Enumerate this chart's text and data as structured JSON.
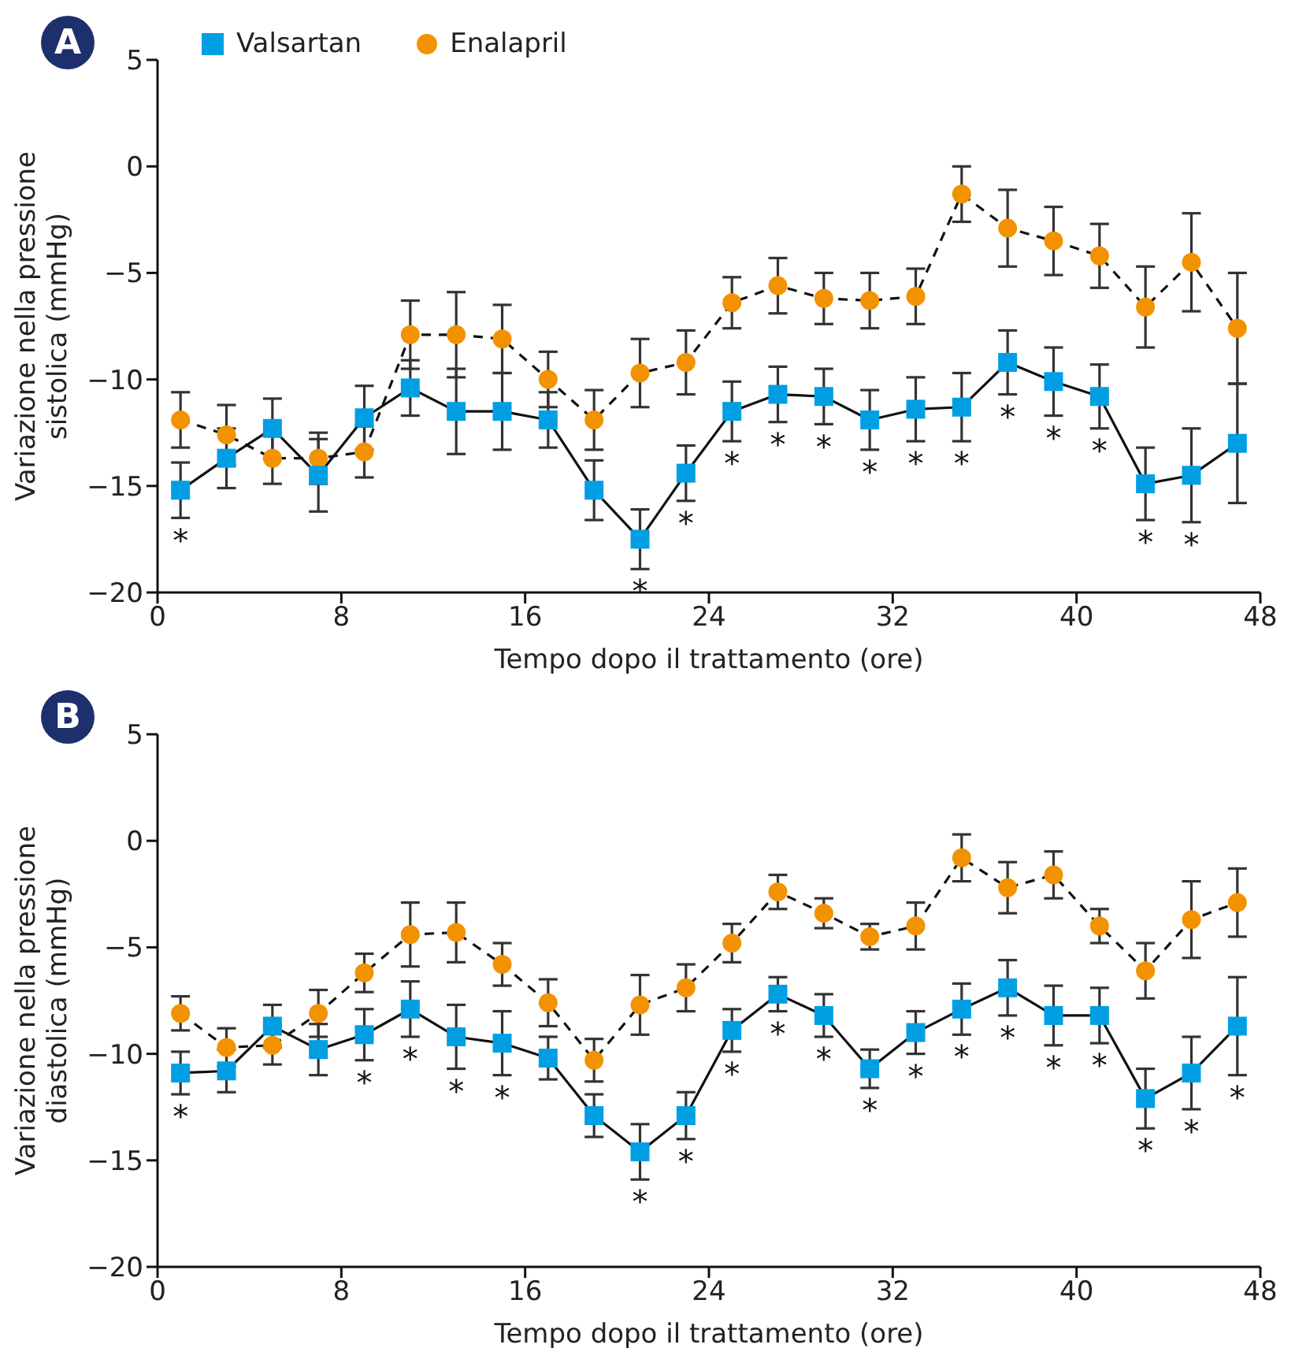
{
  "chart_data": [
    {
      "type": "line",
      "title": "A",
      "xlabel": "Tempo dopo il trattamento (ore)",
      "ylabel": "Variazione nella pressione sistolica (mmHg)",
      "x": [
        1,
        3,
        5,
        7,
        9,
        11,
        13,
        15,
        17,
        19,
        21,
        23,
        25,
        27,
        29,
        31,
        33,
        35,
        37,
        39,
        41,
        43,
        45,
        47
      ],
      "series": [
        {
          "name": "Valsartan",
          "color": "#009fe3",
          "marker": "square",
          "line_style": "solid",
          "values": [
            -15.2,
            -13.7,
            -12.3,
            -14.5,
            -11.8,
            -10.4,
            -11.5,
            -11.5,
            -11.9,
            -15.2,
            -17.5,
            -14.4,
            -11.5,
            -10.7,
            -10.8,
            -11.9,
            -11.4,
            -11.3,
            -9.2,
            -10.1,
            -10.8,
            -14.9,
            -14.5,
            -13.0
          ],
          "errors": [
            1.3,
            1.4,
            1.4,
            1.7,
            1.5,
            1.3,
            2.0,
            1.8,
            1.3,
            1.4,
            1.4,
            1.3,
            1.4,
            1.3,
            1.3,
            1.4,
            1.5,
            1.6,
            1.5,
            1.6,
            1.5,
            1.7,
            2.2,
            2.8
          ]
        },
        {
          "name": "Enalapril",
          "color": "#f39200",
          "marker": "circle",
          "line_style": "dashed",
          "values": [
            -11.9,
            -12.6,
            -13.7,
            -13.7,
            -13.4,
            -7.9,
            -7.9,
            -8.1,
            -10.0,
            -11.9,
            -9.7,
            -9.2,
            -6.4,
            -5.6,
            -6.2,
            -6.3,
            -6.1,
            -1.3,
            -2.9,
            -3.5,
            -4.2,
            -6.6,
            -4.5,
            -7.6
          ],
          "errors": [
            1.3,
            1.4,
            1.2,
            1.2,
            1.2,
            1.6,
            2.0,
            1.6,
            1.3,
            1.4,
            1.6,
            1.5,
            1.2,
            1.3,
            1.2,
            1.3,
            1.3,
            1.3,
            1.8,
            1.6,
            1.5,
            1.9,
            2.3,
            2.6
          ]
        }
      ],
      "xlim": [
        0,
        48
      ],
      "xticks": [
        0,
        8,
        16,
        24,
        32,
        40,
        48
      ],
      "ylim": [
        -20,
        5
      ],
      "yticks": [
        -20,
        -15,
        -10,
        -5,
        0,
        5
      ],
      "grid": false,
      "legend": "top left",
      "annotations": [
        {
          "text": "*",
          "x": 1,
          "y": -15.2
        },
        {
          "text": "*",
          "x": 21,
          "y": -17.5
        },
        {
          "text": "*",
          "x": 23,
          "y": -14.4
        },
        {
          "text": "*",
          "x": 25,
          "y": -11.5
        },
        {
          "text": "*",
          "x": 27,
          "y": -10.7
        },
        {
          "text": "*",
          "x": 29,
          "y": -10.8
        },
        {
          "text": "*",
          "x": 31,
          "y": -11.9
        },
        {
          "text": "*",
          "x": 33,
          "y": -11.4
        },
        {
          "text": "*",
          "x": 35,
          "y": -11.3
        },
        {
          "text": "*",
          "x": 37,
          "y": -9.2
        },
        {
          "text": "*",
          "x": 39,
          "y": -10.1
        },
        {
          "text": "*",
          "x": 41,
          "y": -10.8
        },
        {
          "text": "*",
          "x": 43,
          "y": -14.9
        },
        {
          "text": "*",
          "x": 45,
          "y": -14.5
        }
      ]
    },
    {
      "type": "line",
      "title": "B",
      "xlabel": "Tempo dopo il trattamento (ore)",
      "ylabel": "Variazione nella pressione diastolica (mmHg)",
      "x": [
        1,
        3,
        5,
        7,
        9,
        11,
        13,
        15,
        17,
        19,
        21,
        23,
        25,
        27,
        29,
        31,
        33,
        35,
        37,
        39,
        41,
        43,
        45,
        47
      ],
      "series": [
        {
          "color": "#009fe3",
          "marker": "square",
          "line_style": "solid",
          "values": [
            -10.9,
            -10.8,
            -8.7,
            -9.8,
            -9.1,
            -7.9,
            -9.2,
            -9.5,
            -10.2,
            -12.9,
            -14.6,
            -12.9,
            -8.9,
            -7.2,
            -8.2,
            -10.7,
            -9.0,
            -7.9,
            -6.9,
            -8.2,
            -8.2,
            -12.1,
            -10.9,
            -8.7
          ],
          "errors": [
            1.0,
            1.0,
            1.0,
            1.2,
            1.2,
            1.3,
            1.5,
            1.5,
            1.0,
            1.0,
            1.3,
            1.1,
            1.0,
            0.8,
            1.0,
            0.9,
            1.0,
            1.2,
            1.3,
            1.4,
            1.3,
            1.4,
            1.7,
            2.3
          ]
        },
        {
          "color": "#f39200",
          "marker": "circle",
          "line_style": "dashed",
          "values": [
            -8.1,
            -9.7,
            -9.6,
            -8.1,
            -6.2,
            -4.4,
            -4.3,
            -5.8,
            -7.6,
            -10.3,
            -7.7,
            -6.9,
            -4.8,
            -2.4,
            -3.4,
            -4.5,
            -4.0,
            -0.8,
            -2.2,
            -1.6,
            -4.0,
            -6.1,
            -3.7,
            -2.9
          ],
          "errors": [
            0.8,
            0.9,
            0.9,
            1.1,
            0.9,
            1.5,
            1.4,
            1.0,
            1.1,
            1.0,
            1.4,
            1.1,
            0.9,
            0.8,
            0.7,
            0.6,
            1.1,
            1.1,
            1.2,
            1.1,
            0.8,
            1.3,
            1.8,
            1.6
          ]
        }
      ],
      "xlim": [
        0,
        48
      ],
      "xticks": [
        0,
        8,
        16,
        24,
        32,
        40,
        48
      ],
      "ylim": [
        -20,
        5
      ],
      "yticks": [
        -20,
        -15,
        -10,
        -5,
        0,
        5
      ],
      "grid": false,
      "annotations": [
        {
          "text": "*",
          "x": 1,
          "y": -10.9
        },
        {
          "text": "*",
          "x": 9,
          "y": -9.1
        },
        {
          "text": "*",
          "x": 11,
          "y": -7.9
        },
        {
          "text": "*",
          "x": 13,
          "y": -9.2
        },
        {
          "text": "*",
          "x": 15,
          "y": -9.5
        },
        {
          "text": "*",
          "x": 21,
          "y": -14.6
        },
        {
          "text": "*",
          "x": 23,
          "y": -12.9
        },
        {
          "text": "*",
          "x": 25,
          "y": -8.9
        },
        {
          "text": "*",
          "x": 27,
          "y": -7.2
        },
        {
          "text": "*",
          "x": 29,
          "y": -8.2
        },
        {
          "text": "*",
          "x": 31,
          "y": -10.7
        },
        {
          "text": "*",
          "x": 33,
          "y": -9.0
        },
        {
          "text": "*",
          "x": 35,
          "y": -7.9
        },
        {
          "text": "*",
          "x": 37,
          "y": -6.9
        },
        {
          "text": "*",
          "x": 39,
          "y": -8.2
        },
        {
          "text": "*",
          "x": 41,
          "y": -8.2
        },
        {
          "text": "*",
          "x": 43,
          "y": -12.1
        },
        {
          "text": "*",
          "x": 45,
          "y": -10.9
        },
        {
          "text": "*",
          "x": 47,
          "y": -8.7
        }
      ]
    }
  ]
}
